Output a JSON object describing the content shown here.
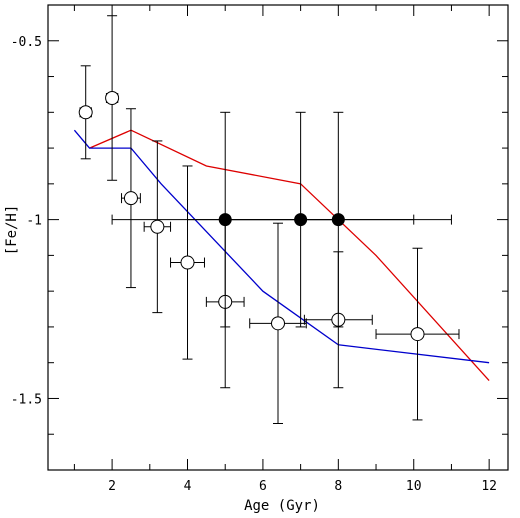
{
  "chart_data": {
    "type": "scatter",
    "xlabel": "Age (Gyr)",
    "ylabel": "[Fe/H]",
    "xlim": [
      0.3,
      12.5
    ],
    "ylim": [
      -1.7,
      -0.4
    ],
    "y_inverted": true,
    "x_ticks": [
      2,
      4,
      6,
      8,
      10,
      12
    ],
    "x_tick_labels": [
      "2",
      "4",
      "6",
      "8",
      "10",
      "12"
    ],
    "x_minor_step": 1,
    "y_ticks": [
      -0.5,
      -1,
      -1.5
    ],
    "y_tick_labels": [
      "-0.5",
      "-1",
      "-1.5"
    ],
    "y_minor_step": 0.1,
    "grid": false,
    "series": [
      {
        "kind": "line",
        "color": "#dd0000",
        "x": [
          1.4,
          2.5,
          4.5,
          7.0,
          9.0,
          12.0
        ],
        "y": [
          -0.8,
          -0.75,
          -0.85,
          -0.9,
          -1.1,
          -1.45
        ]
      },
      {
        "kind": "line",
        "color": "#0000cc",
        "x": [
          1.0,
          1.4,
          2.5,
          3.3,
          6.0,
          8.0,
          12.0
        ],
        "y": [
          -0.75,
          -0.8,
          -0.8,
          -0.9,
          -1.2,
          -1.35,
          -1.4
        ]
      },
      {
        "kind": "points",
        "marker": "open-circle",
        "color": "#000000",
        "x": [
          1.3,
          2.0,
          2.5,
          3.2,
          4.0,
          5.0,
          6.4,
          8.0,
          10.1
        ],
        "y": [
          -0.7,
          -0.66,
          -0.94,
          -1.02,
          -1.12,
          -1.23,
          -1.29,
          -1.28,
          -1.32
        ],
        "xerr": [
          0.15,
          0.15,
          0.25,
          0.35,
          0.45,
          0.5,
          0.75,
          0.9,
          1.1
        ],
        "yerr": [
          0.13,
          0.23,
          0.25,
          0.24,
          0.27,
          0.24,
          0.28,
          0.19,
          0.24
        ]
      },
      {
        "kind": "points",
        "marker": "filled-circle",
        "color": "#000000",
        "x": [
          5.0,
          7.0,
          8.0
        ],
        "y": [
          -1.0,
          -1.0,
          -1.0
        ],
        "xerr": [
          3.0,
          3.0,
          3.0
        ],
        "yerr": [
          0.3,
          0.3,
          0.3
        ]
      }
    ]
  }
}
